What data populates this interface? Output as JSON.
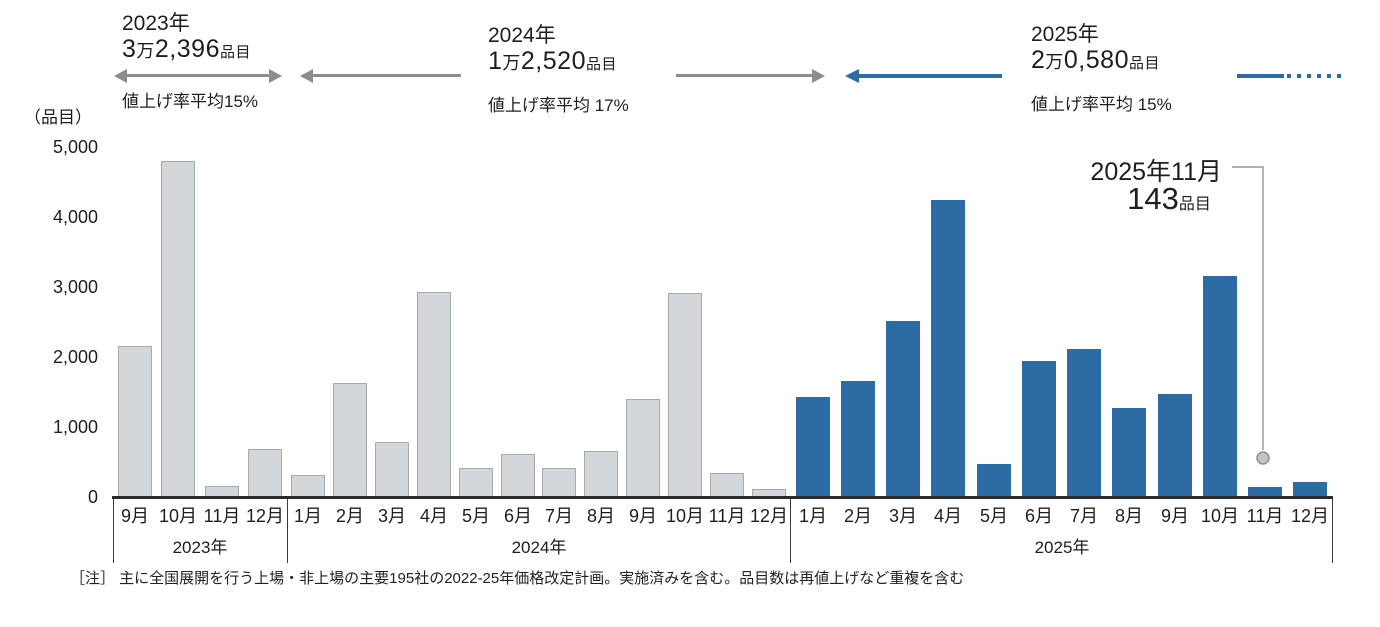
{
  "colors": {
    "bar_gray_fill": "#d3d7da",
    "bar_gray_border": "#a4abb0",
    "bar_blue": "#2d6ba4",
    "arrow_gray": "#8c8c8c",
    "arrow_blue": "#2d6ba4",
    "axis": "#2b2b2b",
    "callout_line": "#9a9a9a",
    "callout_dot_fill": "#c2c2c2",
    "text": "#1e1e1e"
  },
  "annotations": [
    {
      "year_label": "2023年",
      "total_num1": "3",
      "total_man": "万",
      "total_num2": "2,396",
      "total_unit": "品目",
      "rate_label": "値上げ率平均15%"
    },
    {
      "year_label": "2024年",
      "total_num1": "1",
      "total_man": "万",
      "total_num2": "2,520",
      "total_unit": "品目",
      "rate_label": "値上げ率平均 17%"
    },
    {
      "year_label": "2025年",
      "total_num1": "2",
      "total_man": "万",
      "total_num2": "0,580",
      "total_unit": "品目",
      "rate_label": "値上げ率平均 15%"
    }
  ],
  "callout": {
    "label": "2025年11月",
    "value": "143",
    "unit": "品目"
  },
  "note": "［注］ 主に全国展開を行う上場・非上場の主要195社の2022-25年価格改定計画。実施済みを含む。品目数は再値上げなど重複を含む",
  "chart_data": {
    "type": "bar",
    "title": "",
    "xlabel": "",
    "ylabel": "（品目）",
    "ylim": [
      0,
      5000
    ],
    "grid": false,
    "legend": "none",
    "yticks": {
      "values": [
        0,
        1000,
        2000,
        3000,
        4000,
        5000
      ],
      "labels": [
        "0",
        "1,000",
        "2,000",
        "3,000",
        "4,000",
        "5,000"
      ]
    },
    "groups": [
      {
        "year": "2023年",
        "bar_color": "#d3d7da",
        "months": [
          "9月",
          "10月",
          "11月",
          "12月"
        ],
        "values": [
          2150,
          4800,
          150,
          680
        ]
      },
      {
        "year": "2024年",
        "bar_color": "#d3d7da",
        "months": [
          "1月",
          "2月",
          "3月",
          "4月",
          "5月",
          "6月",
          "7月",
          "8月",
          "9月",
          "10月",
          "11月",
          "12月"
        ],
        "values": [
          310,
          1630,
          780,
          2930,
          420,
          620,
          420,
          660,
          1400,
          2920,
          340,
          110
        ]
      },
      {
        "year": "2025年",
        "bar_color": "#2d6ba4",
        "months": [
          "1月",
          "2月",
          "3月",
          "4月",
          "5月",
          "6月",
          "7月",
          "8月",
          "9月",
          "10月",
          "11月",
          "12月"
        ],
        "values": [
          1430,
          1660,
          2520,
          4240,
          470,
          1940,
          2110,
          1270,
          1470,
          3150,
          143,
          210
        ]
      }
    ],
    "highlight": {
      "group": "2025年",
      "month": "11月",
      "value": 143
    }
  }
}
